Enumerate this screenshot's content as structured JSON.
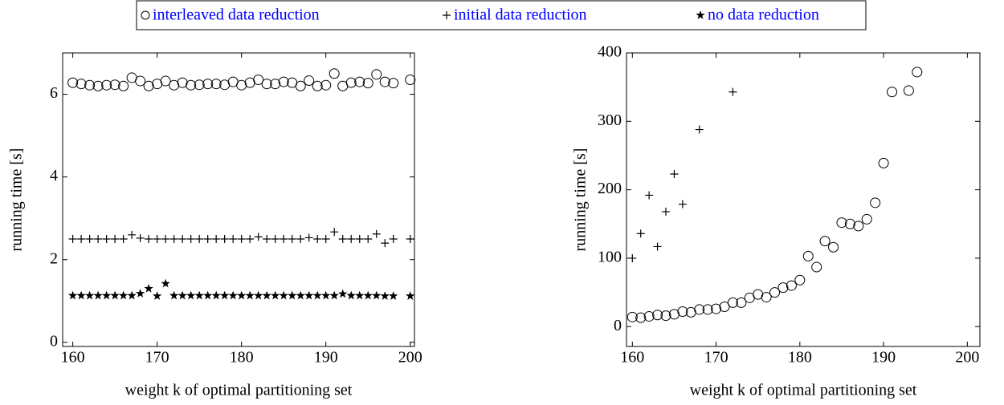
{
  "chart_data": [
    {
      "type": "scatter",
      "x_label": "weight k of optimal partitioning set",
      "y_label": "running time [s]",
      "xlim": [
        158.8,
        200.5
      ],
      "ylim": [
        -0.1,
        7
      ],
      "xticks": [
        160,
        170,
        180,
        190,
        200
      ],
      "yticks": [
        0,
        2,
        4,
        6
      ],
      "x": [
        160,
        161,
        162,
        163,
        164,
        165,
        166,
        167,
        168,
        169,
        170,
        171,
        172,
        173,
        174,
        175,
        176,
        177,
        178,
        179,
        180,
        181,
        182,
        183,
        184,
        185,
        186,
        187,
        188,
        189,
        190,
        191,
        192,
        193,
        194,
        195,
        196,
        197,
        198,
        200
      ],
      "series": [
        {
          "name": "interleaved data reduction",
          "marker": "circle",
          "color": "#000000",
          "values": [
            6.28,
            6.25,
            6.22,
            6.2,
            6.22,
            6.23,
            6.2,
            6.4,
            6.32,
            6.2,
            6.25,
            6.32,
            6.22,
            6.28,
            6.22,
            6.23,
            6.25,
            6.25,
            6.23,
            6.3,
            6.22,
            6.28,
            6.35,
            6.25,
            6.25,
            6.3,
            6.28,
            6.2,
            6.33,
            6.2,
            6.22,
            6.5,
            6.2,
            6.28,
            6.3,
            6.27,
            6.48,
            6.3,
            6.27,
            6.35
          ]
        },
        {
          "name": "initial data reduction",
          "marker": "plus",
          "color": "#000000",
          "values": [
            2.5,
            2.5,
            2.5,
            2.5,
            2.5,
            2.5,
            2.5,
            2.6,
            2.52,
            2.5,
            2.5,
            2.5,
            2.5,
            2.5,
            2.5,
            2.5,
            2.5,
            2.5,
            2.5,
            2.5,
            2.5,
            2.5,
            2.55,
            2.5,
            2.5,
            2.5,
            2.5,
            2.5,
            2.53,
            2.5,
            2.5,
            2.67,
            2.5,
            2.5,
            2.5,
            2.5,
            2.62,
            2.4,
            2.5,
            2.5
          ]
        },
        {
          "name": "no data reduction",
          "marker": "star",
          "color": "#000000",
          "values": [
            1.13,
            1.13,
            1.13,
            1.13,
            1.13,
            1.13,
            1.13,
            1.13,
            1.18,
            1.3,
            1.12,
            1.42,
            1.13,
            1.13,
            1.13,
            1.13,
            1.13,
            1.13,
            1.13,
            1.13,
            1.13,
            1.13,
            1.13,
            1.13,
            1.13,
            1.13,
            1.13,
            1.13,
            1.13,
            1.13,
            1.13,
            1.13,
            1.17,
            1.13,
            1.13,
            1.13,
            1.13,
            1.12,
            1.12,
            1.12
          ]
        }
      ]
    },
    {
      "type": "scatter",
      "x_label": "weight k of optimal partitioning set",
      "y_label": "running time [s]",
      "xlim": [
        159.3,
        201.5
      ],
      "ylim": [
        -29,
        400
      ],
      "xticks": [
        160,
        170,
        180,
        190,
        200
      ],
      "yticks": [
        0,
        100,
        200,
        300,
        400
      ],
      "series": [
        {
          "marker": "circle",
          "color": "#000000",
          "x": [
            160,
            161,
            162,
            163,
            164,
            165,
            166,
            167,
            168,
            169,
            170,
            171,
            172,
            173,
            174,
            175,
            176,
            177,
            178,
            179,
            180,
            181,
            182,
            183,
            184,
            185,
            186,
            187,
            188,
            189,
            190,
            191,
            193,
            194
          ],
          "values": [
            14,
            13,
            15,
            17,
            16,
            18,
            22,
            21,
            25,
            25,
            26,
            29,
            35,
            35,
            42,
            47,
            43,
            50,
            57,
            60,
            68,
            103,
            87,
            125,
            116,
            152,
            150,
            147,
            157,
            181,
            239,
            343,
            345,
            372
          ]
        },
        {
          "marker": "plus",
          "color": "#000000",
          "x": [
            160,
            161,
            162,
            163,
            164,
            165,
            166,
            168,
            172
          ],
          "values": [
            100,
            136,
            192,
            117,
            168,
            223,
            179,
            288,
            343
          ]
        }
      ]
    }
  ]
}
